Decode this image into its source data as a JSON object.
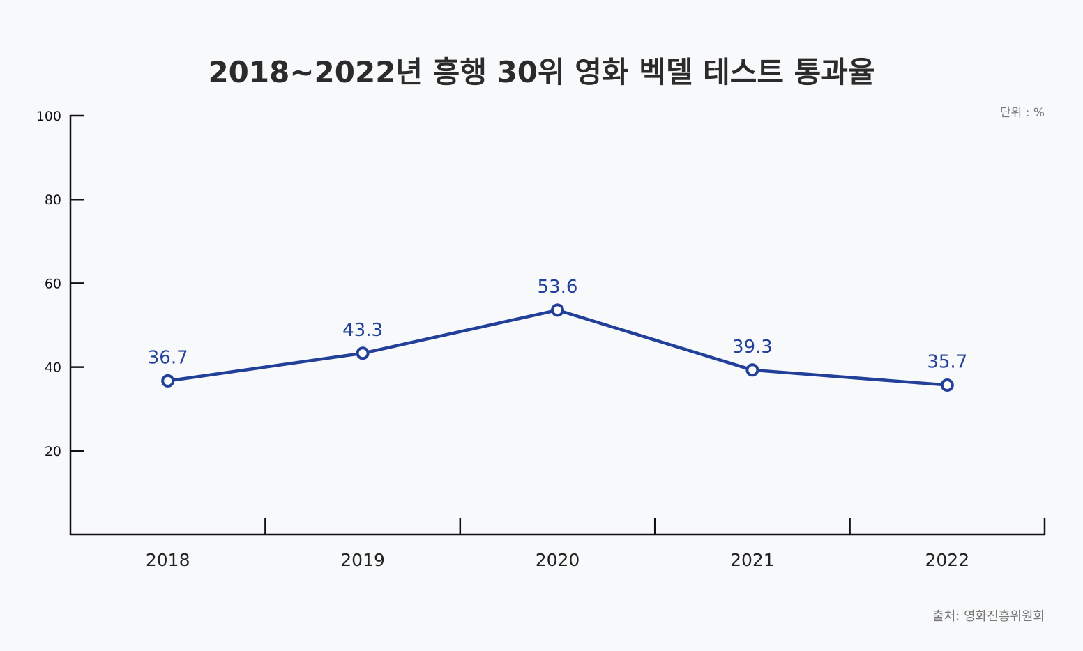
{
  "chart_data": {
    "type": "line",
    "title": "2018~2022년 흥행 30위 영화 벡델 테스트 통과율",
    "unit_label": "단위 : %",
    "source": "출처: 영화진흥위원회",
    "categories": [
      "2018",
      "2019",
      "2020",
      "2021",
      "2022"
    ],
    "values": [
      36.7,
      43.3,
      53.6,
      39.3,
      35.7
    ],
    "data_labels": [
      "36.7",
      "43.3",
      "53.6",
      "39.3",
      "35.7"
    ],
    "ylim": [
      0,
      100
    ],
    "yticks": [
      20,
      40,
      60,
      80,
      100
    ],
    "ytick_labels": [
      "20",
      "40",
      "60",
      "80",
      "100"
    ],
    "grid": false,
    "line_color": "#22409a"
  }
}
